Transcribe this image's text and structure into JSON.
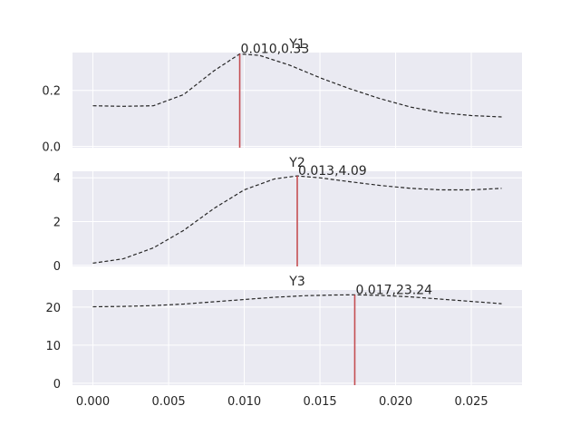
{
  "chart_data": [
    {
      "type": "line",
      "title": "Y1",
      "xlabel": "",
      "ylabel": "",
      "xlim": [
        -0.00135,
        0.02835
      ],
      "ylim": [
        -0.005,
        0.335
      ],
      "yticks": [
        0.0,
        0.2
      ],
      "ytick_labels": [
        "0.0",
        "0.2"
      ],
      "grid": true,
      "series": [
        {
          "style": "dashed",
          "color": "#262626",
          "x": [
            0.0,
            0.002,
            0.004,
            0.006,
            0.008,
            0.0097,
            0.011,
            0.013,
            0.015,
            0.017,
            0.019,
            0.021,
            0.023,
            0.025,
            0.027
          ],
          "y": [
            0.145,
            0.143,
            0.145,
            0.185,
            0.27,
            0.33,
            0.325,
            0.29,
            0.245,
            0.205,
            0.17,
            0.14,
            0.12,
            0.11,
            0.105
          ]
        }
      ],
      "marker": {
        "x": 0.0097,
        "y": 0.33,
        "color": "#c44e52"
      },
      "annotation": "0.010,0.33"
    },
    {
      "type": "line",
      "title": "Y2",
      "xlabel": "",
      "ylabel": "",
      "xlim": [
        -0.00135,
        0.02835
      ],
      "ylim": [
        -0.05,
        4.3
      ],
      "yticks": [
        0,
        2,
        4
      ],
      "ytick_labels": [
        "0",
        "2",
        "4"
      ],
      "grid": true,
      "series": [
        {
          "style": "dashed",
          "color": "#262626",
          "x": [
            0.0,
            0.002,
            0.004,
            0.006,
            0.008,
            0.01,
            0.012,
            0.0135,
            0.015,
            0.017,
            0.019,
            0.021,
            0.023,
            0.025,
            0.027
          ],
          "y": [
            0.1,
            0.3,
            0.8,
            1.6,
            2.6,
            3.45,
            3.95,
            4.09,
            4.0,
            3.82,
            3.65,
            3.52,
            3.45,
            3.45,
            3.52
          ]
        }
      ],
      "marker": {
        "x": 0.0135,
        "y": 4.09,
        "color": "#c44e52"
      },
      "annotation": "0.013,4.09"
    },
    {
      "type": "line",
      "title": "Y3",
      "xlabel": "",
      "ylabel": "",
      "xlim": [
        -0.00135,
        0.02835
      ],
      "ylim": [
        -0.5,
        24.5
      ],
      "yticks": [
        0,
        10,
        20
      ],
      "ytick_labels": [
        "0",
        "10",
        "20"
      ],
      "xticks": [
        0.0,
        0.005,
        0.01,
        0.015,
        0.02,
        0.025
      ],
      "xtick_labels": [
        "0.000",
        "0.005",
        "0.010",
        "0.015",
        "0.020",
        "0.025"
      ],
      "grid": true,
      "series": [
        {
          "style": "dashed",
          "color": "#262626",
          "x": [
            0.0,
            0.002,
            0.004,
            0.006,
            0.008,
            0.01,
            0.012,
            0.014,
            0.016,
            0.0173,
            0.019,
            0.021,
            0.023,
            0.025,
            0.027
          ],
          "y": [
            20.1,
            20.2,
            20.4,
            20.8,
            21.4,
            22.0,
            22.6,
            23.0,
            23.2,
            23.24,
            23.1,
            22.7,
            22.1,
            21.5,
            20.9
          ]
        }
      ],
      "marker": {
        "x": 0.0173,
        "y": 23.24,
        "color": "#c44e52"
      },
      "annotation": "0.017,23.24"
    }
  ]
}
